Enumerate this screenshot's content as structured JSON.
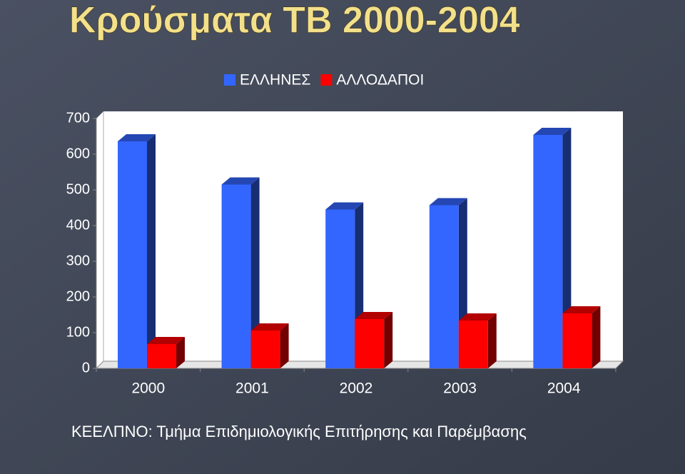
{
  "chart_data": {
    "type": "bar3d",
    "title": "Κρούσματα ΤΒ 2000-2004",
    "categories": [
      "2000",
      "2001",
      "2002",
      "2003",
      "2004"
    ],
    "series": [
      {
        "name": "ΕΛΛΗΝΕΣ",
        "color": "#3366ff",
        "values": [
          636,
          515,
          445,
          457,
          654
        ]
      },
      {
        "name": "ΑΛΛΟΔΑΠΟΙ",
        "color": "#ff0000",
        "values": [
          68,
          106,
          138,
          134,
          154
        ]
      }
    ],
    "ylim": [
      0,
      700
    ],
    "yticks": [
      0,
      100,
      200,
      300,
      400,
      500,
      600,
      700
    ],
    "source": "ΚΕΕΛΠΝΟ: Τμήμα Επιδημιολογικής Επιτήρησης και Παρέμβασης"
  }
}
